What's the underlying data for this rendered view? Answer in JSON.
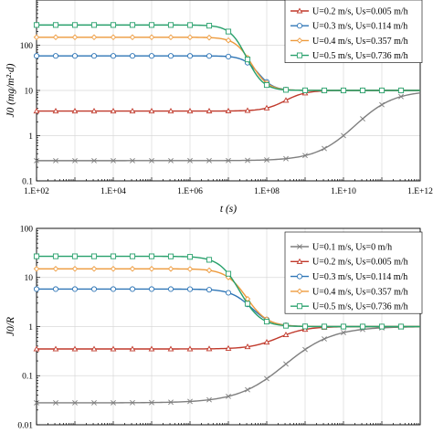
{
  "chart_data": [
    {
      "type": "line",
      "xlabel": "t (s)",
      "ylabel": "J0 (mg/m²·d)",
      "xscale": "log",
      "yscale": "log",
      "xlim": [
        100,
        1000000000000
      ],
      "ylim": [
        0.1,
        1000
      ],
      "x_ticks": [
        "1.E+02",
        "1.E+04",
        "1.E+06",
        "1.E+08",
        "1.E+10",
        "1.E+12"
      ],
      "y_ticks": [
        "0.1",
        "1",
        "10",
        "100"
      ],
      "legend_position": "top-right",
      "grid": true,
      "series": [
        {
          "name": "",
          "color": "#7f7f7f",
          "marker": "x",
          "initial": 0.28,
          "final": 10,
          "t_mid": 20000000000,
          "steepness": 0.85
        },
        {
          "name": "U=0.2 m/s, Us=0.005 m/h",
          "color": "#c0392b",
          "marker": "triangle",
          "initial": 3.5,
          "final": 10,
          "t_mid": 300000000,
          "steepness": 1.6
        },
        {
          "name": "U=0.3 m/s, Us=0.114 m/h",
          "color": "#2e75b6",
          "marker": "circle",
          "initial": 58,
          "final": 10,
          "t_mid": 60000000,
          "steepness": 2.2
        },
        {
          "name": "U=0.4 m/s, Us=0.357 m/h",
          "color": "#ed9a3c",
          "marker": "diamond",
          "initial": 150,
          "final": 10,
          "t_mid": 40000000,
          "steepness": 2.0
        },
        {
          "name": "U=0.5 m/s, Us=0.736 m/h",
          "color": "#27a06b",
          "marker": "square",
          "initial": 280,
          "final": 10,
          "t_mid": 30000000,
          "steepness": 2.0
        }
      ]
    },
    {
      "type": "line",
      "xlabel": "",
      "ylabel": "J0/R",
      "xscale": "log",
      "yscale": "log",
      "xlim": [
        100,
        1000000000000
      ],
      "ylim": [
        0.01,
        100
      ],
      "x_ticks": [],
      "y_ticks": [
        "0.01",
        "0.1",
        "1",
        "10",
        "100"
      ],
      "legend_position": "right",
      "grid": true,
      "series": [
        {
          "name": "U=0.1 m/s, Us=0 m/h",
          "color": "#7f7f7f",
          "marker": "x",
          "initial": 0.028,
          "final": 1,
          "t_mid": 300000000,
          "steepness": 0.7
        },
        {
          "name": "U=0.2 m/s, Us=0.005 m/h",
          "color": "#c0392b",
          "marker": "triangle",
          "initial": 0.35,
          "final": 1,
          "t_mid": 200000000,
          "steepness": 1.2
        },
        {
          "name": "U=0.3 m/s, Us=0.114 m/h",
          "color": "#2e75b6",
          "marker": "circle",
          "initial": 5.8,
          "final": 1,
          "t_mid": 40000000,
          "steepness": 1.6
        },
        {
          "name": "U=0.4 m/s, Us=0.357 m/h",
          "color": "#ed9a3c",
          "marker": "diamond",
          "initial": 15,
          "final": 1,
          "t_mid": 30000000,
          "steepness": 1.6
        },
        {
          "name": "U=0.5 m/s, Us=0.736 m/h",
          "color": "#27a06b",
          "marker": "square",
          "initial": 27,
          "final": 1,
          "t_mid": 20000000,
          "steepness": 1.6
        }
      ]
    }
  ]
}
